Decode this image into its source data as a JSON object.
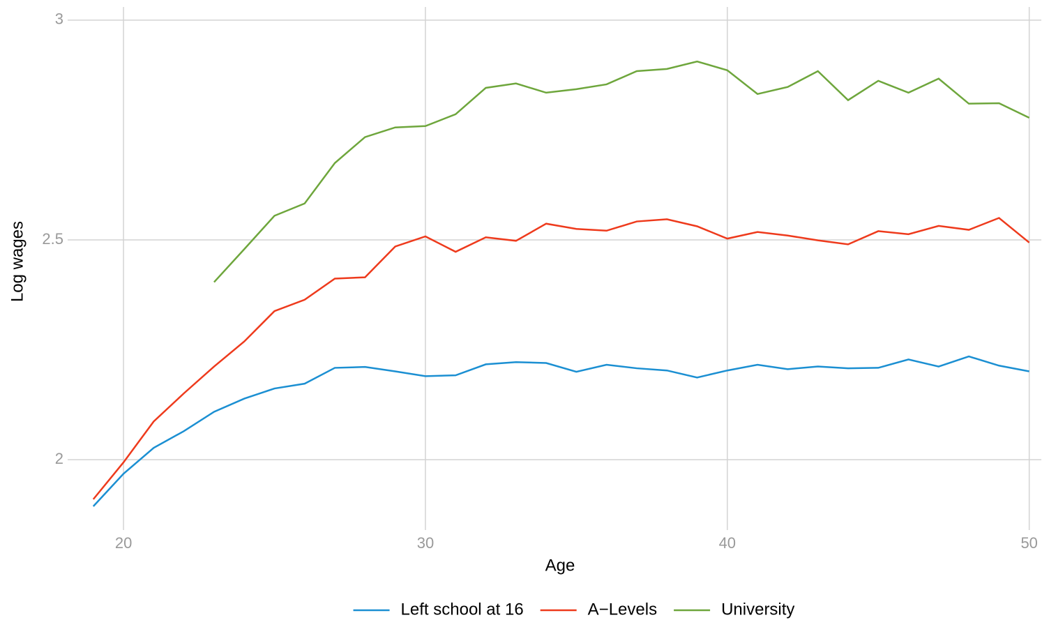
{
  "chart_data": {
    "type": "line",
    "xlabel": "Age",
    "ylabel": "Log wages",
    "x": [
      19,
      20,
      21,
      22,
      23,
      24,
      25,
      26,
      27,
      28,
      29,
      30,
      31,
      32,
      33,
      34,
      35,
      36,
      37,
      38,
      39,
      40,
      41,
      42,
      43,
      44,
      45,
      46,
      47,
      48,
      49,
      50
    ],
    "series": [
      {
        "name": "Left school at 16",
        "color": "#1b8fd2",
        "values": [
          1.894,
          1.968,
          2.027,
          2.065,
          2.109,
          2.139,
          2.162,
          2.173,
          2.209,
          2.211,
          2.201,
          2.19,
          2.192,
          2.217,
          2.222,
          2.22,
          2.2,
          2.216,
          2.208,
          2.203,
          2.187,
          2.203,
          2.216,
          2.206,
          2.212,
          2.208,
          2.209,
          2.228,
          2.212,
          2.235,
          2.214,
          2.201
        ]
      },
      {
        "name": "A−Levels",
        "color": "#ee3a1c",
        "values": [
          1.91,
          1.994,
          2.087,
          2.151,
          2.212,
          2.269,
          2.338,
          2.364,
          2.412,
          2.415,
          2.485,
          2.508,
          2.473,
          2.506,
          2.498,
          2.537,
          2.525,
          2.521,
          2.542,
          2.547,
          2.531,
          2.503,
          2.518,
          2.51,
          2.499,
          2.49,
          2.52,
          2.513,
          2.532,
          2.523,
          2.55,
          2.494
        ]
      },
      {
        "name": "University",
        "color": "#6ea63c",
        "values": [
          null,
          null,
          null,
          null,
          2.404,
          2.479,
          2.555,
          2.583,
          2.675,
          2.734,
          2.756,
          2.759,
          2.786,
          2.846,
          2.856,
          2.835,
          2.843,
          2.854,
          2.884,
          2.889,
          2.906,
          2.886,
          2.832,
          2.848,
          2.884,
          2.818,
          2.862,
          2.835,
          2.867,
          2.81,
          2.811,
          2.778
        ]
      }
    ],
    "xlim": [
      18.15,
      50.4
    ],
    "xticks": [
      20,
      30,
      40,
      50
    ],
    "ylim": [
      1.84,
      3.03
    ],
    "yticks": [
      2,
      2.5,
      3
    ],
    "grid": true,
    "legend": "bottom"
  }
}
